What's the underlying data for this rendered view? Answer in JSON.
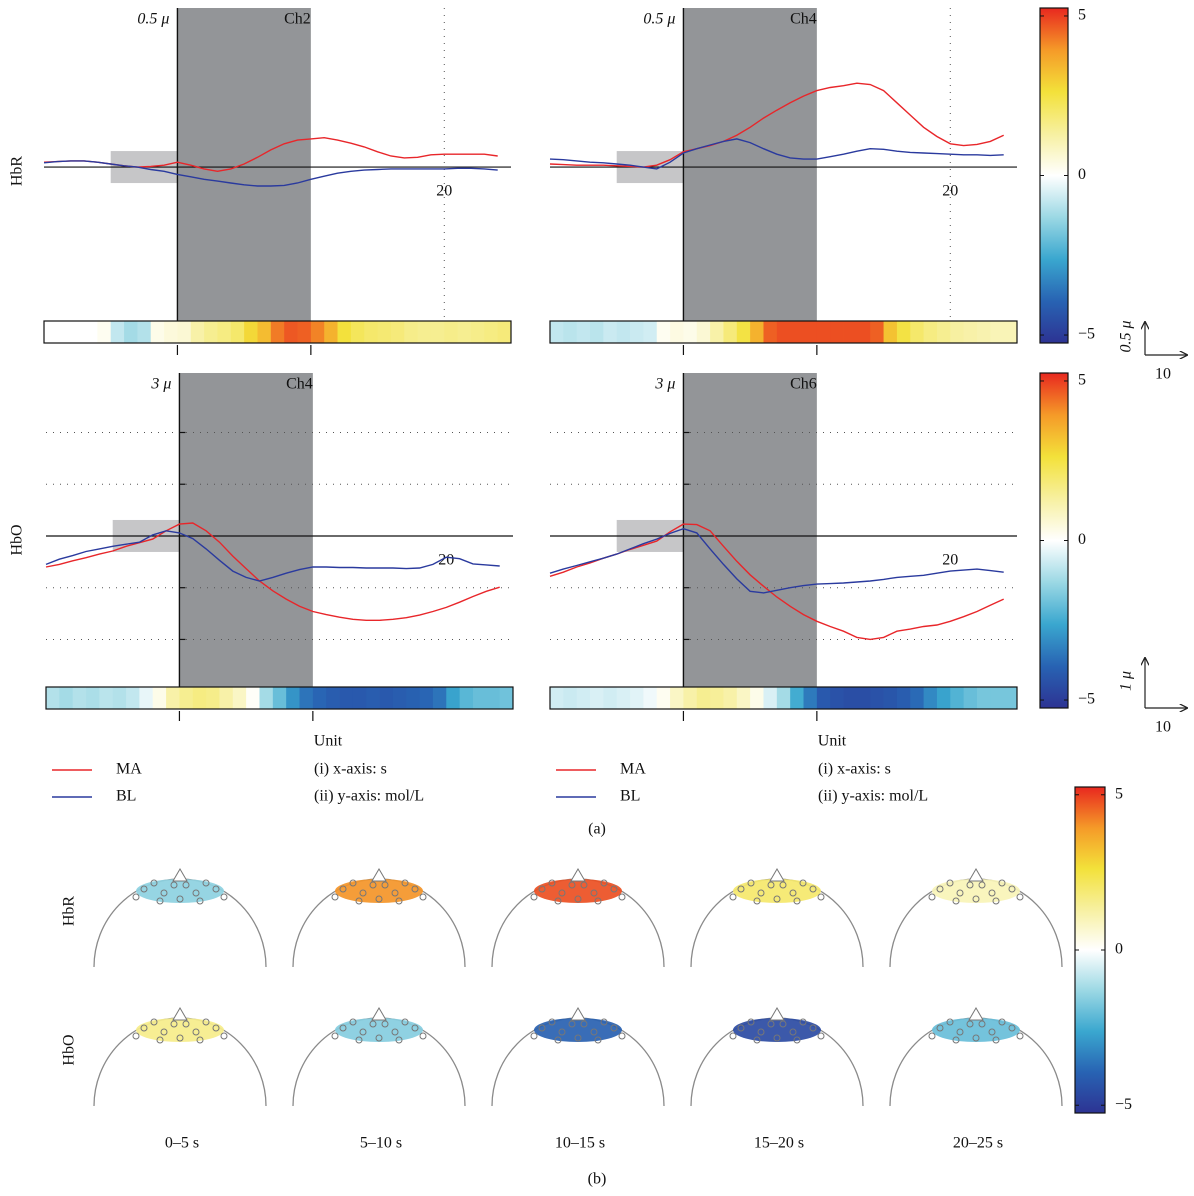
{
  "chart_data": [
    {
      "type": "line",
      "title": "Ch2",
      "scale_label": "0.5 μ",
      "ylabel": "HbR",
      "x": [
        -10,
        -9,
        -8,
        -7,
        -6,
        -5,
        -4,
        -3,
        -2,
        -1,
        0,
        1,
        2,
        3,
        4,
        5,
        6,
        7,
        8,
        9,
        10,
        11,
        12,
        13,
        14,
        15,
        16,
        17,
        18,
        19,
        20,
        21,
        22,
        23,
        24
      ],
      "xlim": [
        -10,
        25
      ],
      "ylim": [
        -2.5,
        2.6
      ],
      "xticks": [
        20
      ],
      "xgrid": true,
      "stimulus": [
        0,
        10
      ],
      "baseline": [
        -5,
        0
      ],
      "series": [
        {
          "color": "#e8262a",
          "values": [
            0.08,
            0.09,
            0.1,
            0.1,
            0.08,
            0.05,
            0.02,
            0,
            0.01,
            0.03,
            0.08,
            0.03,
            -0.03,
            -0.07,
            -0.03,
            0.05,
            0.16,
            0.28,
            0.38,
            0.44,
            0.46,
            0.48,
            0.44,
            0.39,
            0.33,
            0.25,
            0.18,
            0.15,
            0.16,
            0.2,
            0.21,
            0.21,
            0.21,
            0.21,
            0.18
          ]
        },
        {
          "color": "#2a3a9e",
          "values": [
            0.07,
            0.09,
            0.1,
            0.1,
            0.08,
            0.05,
            0.02,
            0,
            -0.04,
            -0.07,
            -0.12,
            -0.16,
            -0.2,
            -0.23,
            -0.26,
            -0.29,
            -0.31,
            -0.31,
            -0.3,
            -0.26,
            -0.2,
            -0.15,
            -0.1,
            -0.07,
            -0.05,
            -0.04,
            -0.03,
            -0.03,
            -0.03,
            -0.03,
            -0.03,
            -0.02,
            -0.02,
            -0.03,
            -0.05
          ]
        }
      ],
      "strip": [
        0,
        0,
        0,
        0,
        0.2,
        -0.8,
        -1.2,
        -1,
        0.3,
        0.5,
        0.6,
        1.2,
        1.5,
        1.7,
        2,
        2.8,
        3.3,
        4.3,
        4.7,
        4.6,
        4.2,
        3.5,
        2.6,
        2.2,
        2,
        1.9,
        1.8,
        1.6,
        1.5,
        1.5,
        1.6,
        1.5,
        1.6,
        1.7,
        1.8
      ]
    },
    {
      "type": "line",
      "title": "Ch4",
      "scale_label": "0.5 μ",
      "x": [
        -10,
        -9,
        -8,
        -7,
        -6,
        -5,
        -4,
        -3,
        -2,
        -1,
        0,
        1,
        2,
        3,
        4,
        5,
        6,
        7,
        8,
        9,
        10,
        11,
        12,
        13,
        14,
        15,
        16,
        17,
        18,
        19,
        20,
        21,
        22,
        23,
        24
      ],
      "xlim": [
        -10,
        25
      ],
      "ylim": [
        -2.5,
        2.6
      ],
      "xticks": [
        20
      ],
      "xgrid": true,
      "stimulus": [
        0,
        10
      ],
      "baseline": [
        -5,
        0
      ],
      "series": [
        {
          "color": "#e8262a",
          "values": [
            0.05,
            0.04,
            0.03,
            0.03,
            0.03,
            0.02,
            0.01,
            0,
            0.03,
            0.12,
            0.25,
            0.3,
            0.35,
            0.42,
            0.52,
            0.65,
            0.8,
            0.93,
            1.05,
            1.16,
            1.25,
            1.3,
            1.33,
            1.37,
            1.35,
            1.25,
            1.05,
            0.85,
            0.65,
            0.5,
            0.38,
            0.35,
            0.37,
            0.42,
            0.52
          ]
        },
        {
          "color": "#2a3a9e",
          "values": [
            0.13,
            0.12,
            0.1,
            0.08,
            0.07,
            0.05,
            0.03,
            0,
            -0.03,
            0.08,
            0.23,
            0.3,
            0.36,
            0.42,
            0.46,
            0.4,
            0.3,
            0.21,
            0.15,
            0.13,
            0.13,
            0.17,
            0.21,
            0.26,
            0.3,
            0.29,
            0.26,
            0.24,
            0.23,
            0.22,
            0.21,
            0.2,
            0.2,
            0.19,
            0.2
          ]
        }
      ],
      "strip": [
        -0.8,
        -0.9,
        -0.8,
        -0.9,
        -0.7,
        -0.8,
        -0.7,
        -0.6,
        0.2,
        0.4,
        0.3,
        0.6,
        1.2,
        1.8,
        2.5,
        3.5,
        4.6,
        4.8,
        4.8,
        4.8,
        4.8,
        4.8,
        4.8,
        4.8,
        4.6,
        3.2,
        2.5,
        2,
        1.7,
        1.5,
        1.3,
        1.2,
        1.1,
        1,
        1
      ]
    },
    {
      "type": "line",
      "title": "Ch4",
      "scale_label": "3 μ",
      "ylabel": "HbO",
      "xlabel": "Unit",
      "notes": [
        "(i) x-axis: s",
        "(ii) y-axis: mol/L"
      ],
      "x": [
        -10,
        -9,
        -8,
        -7,
        -6,
        -5,
        -4,
        -3,
        -2,
        -1,
        0,
        1,
        2,
        3,
        4,
        5,
        6,
        7,
        8,
        9,
        10,
        11,
        12,
        13,
        14,
        15,
        16,
        17,
        18,
        19,
        20,
        21,
        22,
        23,
        24
      ],
      "xlim": [
        -10,
        25
      ],
      "ylim": [
        -2.9,
        3.15
      ],
      "xticks": [
        20
      ],
      "yticks": [
        -2,
        -1,
        1,
        2
      ],
      "ygrid": true,
      "stimulus": [
        0,
        10
      ],
      "baseline": [
        -5,
        0
      ],
      "series": [
        {
          "name": "MA",
          "color": "#e8262a",
          "values": [
            -0.6,
            -0.55,
            -0.48,
            -0.42,
            -0.35,
            -0.29,
            -0.2,
            -0.13,
            -0.06,
            0.1,
            0.23,
            0.25,
            0.1,
            -0.12,
            -0.39,
            -0.63,
            -0.87,
            -1.06,
            -1.22,
            -1.36,
            -1.46,
            -1.52,
            -1.57,
            -1.61,
            -1.63,
            -1.63,
            -1.61,
            -1.58,
            -1.53,
            -1.46,
            -1.38,
            -1.28,
            -1.17,
            -1.07,
            -0.99
          ]
        },
        {
          "name": "BL",
          "color": "#2a3a9e",
          "values": [
            -0.55,
            -0.45,
            -0.38,
            -0.3,
            -0.25,
            -0.2,
            -0.16,
            -0.12,
            0.02,
            0.1,
            0.06,
            -0.05,
            -0.25,
            -0.47,
            -0.68,
            -0.8,
            -0.87,
            -0.8,
            -0.72,
            -0.65,
            -0.6,
            -0.6,
            -0.61,
            -0.61,
            -0.62,
            -0.62,
            -0.62,
            -0.63,
            -0.62,
            -0.55,
            -0.41,
            -0.44,
            -0.54,
            -0.56,
            -0.58
          ]
        }
      ],
      "strip": [
        -1,
        -1.2,
        -1,
        -1.1,
        -0.9,
        -1,
        -0.8,
        -0.3,
        0.3,
        1.2,
        1.5,
        1.7,
        1.6,
        1.2,
        0.8,
        0.1,
        -1.2,
        -2,
        -3,
        -3.6,
        -3.9,
        -4.1,
        -4.2,
        -4.2,
        -4.1,
        -4.2,
        -4.1,
        -4,
        -3.9,
        -3.6,
        -2.7,
        -2.2,
        -2,
        -2,
        -1.9
      ]
    },
    {
      "type": "line",
      "title": "Ch6",
      "scale_label": "3 μ",
      "xlabel": "Unit",
      "notes": [
        "(i) x-axis: s",
        "(ii) y-axis: mol/L"
      ],
      "x": [
        -10,
        -9,
        -8,
        -7,
        -6,
        -5,
        -4,
        -3,
        -2,
        -1,
        0,
        1,
        2,
        3,
        4,
        5,
        6,
        7,
        8,
        9,
        10,
        11,
        12,
        13,
        14,
        15,
        16,
        17,
        18,
        19,
        20,
        21,
        22,
        23,
        24
      ],
      "xlim": [
        -10,
        25
      ],
      "ylim": [
        -2.9,
        3.15
      ],
      "xticks": [
        20
      ],
      "yticks": [
        -2,
        -1,
        1,
        2
      ],
      "ygrid": true,
      "stimulus": [
        0,
        10
      ],
      "baseline": [
        -5,
        0
      ],
      "series": [
        {
          "name": "MA",
          "color": "#e8262a",
          "values": [
            -0.78,
            -0.7,
            -0.6,
            -0.52,
            -0.43,
            -0.35,
            -0.26,
            -0.18,
            -0.1,
            0.08,
            0.23,
            0.22,
            0.1,
            -0.2,
            -0.49,
            -0.75,
            -0.97,
            -1.18,
            -1.36,
            -1.52,
            -1.65,
            -1.75,
            -1.84,
            -1.96,
            -2,
            -1.96,
            -1.84,
            -1.8,
            -1.75,
            -1.72,
            -1.65,
            -1.56,
            -1.46,
            -1.34,
            -1.22
          ]
        },
        {
          "name": "BL",
          "color": "#2a3a9e",
          "values": [
            -0.72,
            -0.64,
            -0.57,
            -0.5,
            -0.43,
            -0.35,
            -0.25,
            -0.15,
            -0.06,
            0.05,
            0.14,
            0.06,
            -0.25,
            -0.55,
            -0.83,
            -1.07,
            -1.1,
            -1.05,
            -1,
            -0.96,
            -0.93,
            -0.92,
            -0.91,
            -0.89,
            -0.87,
            -0.84,
            -0.8,
            -0.78,
            -0.76,
            -0.72,
            -0.68,
            -0.66,
            -0.64,
            -0.67,
            -0.7
          ]
        }
      ],
      "strip": [
        -0.6,
        -0.7,
        -0.6,
        -0.5,
        -0.6,
        -0.5,
        -0.4,
        -0.2,
        0.2,
        0.8,
        1.2,
        1.5,
        1.4,
        1.2,
        0.8,
        0.3,
        -0.5,
        -1.2,
        -2.5,
        -3.5,
        -4.2,
        -4.4,
        -4.5,
        -4.5,
        -4.4,
        -4.3,
        -4.1,
        -3.8,
        -3.2,
        -2.7,
        -2.3,
        -2,
        -1.8,
        -1.8,
        -1.8
      ]
    },
    {
      "type": "colorbar",
      "ylim": [
        -5.25,
        5.25
      ],
      "yticks": [
        5,
        0,
        {
          "value": -5,
          "label": "−5"
        }
      ]
    },
    {
      "type": "colorbar",
      "ylim": [
        -5.25,
        5.25
      ],
      "yticks": [
        5,
        0,
        {
          "value": -5,
          "label": "−5"
        }
      ]
    },
    {
      "type": "topomap",
      "categories": [
        "0–5 s",
        "5–10 s",
        "10–15 s",
        "15–20 s",
        "20–25 s"
      ],
      "series": [
        {
          "name": "HbR",
          "values": [
            -1.5,
            4,
            4.8,
            2,
            1
          ]
        },
        {
          "name": "HbO",
          "values": [
            1.6,
            -1.6,
            -4,
            -4.6,
            -2
          ]
        }
      ]
    },
    {
      "type": "colorbar",
      "ylim": [
        -5.25,
        5.25
      ],
      "yticks": [
        5,
        0,
        {
          "value": -5,
          "label": "−5"
        }
      ]
    }
  ],
  "figure": {
    "panel_labels": [
      "(a)",
      "(b)"
    ],
    "colormap": [
      "#2d3393",
      "#2863b3",
      "#3aa7cf",
      "#9bd8e4",
      "#ffffff",
      "#f7f0a0",
      "#f3e13a",
      "#f59a28",
      "#e8281f"
    ],
    "scale_bars": [
      {
        "y_label": "0.5 μ",
        "x_label": "10"
      },
      {
        "y_label": "1 μ",
        "x_label": "10"
      }
    ]
  }
}
